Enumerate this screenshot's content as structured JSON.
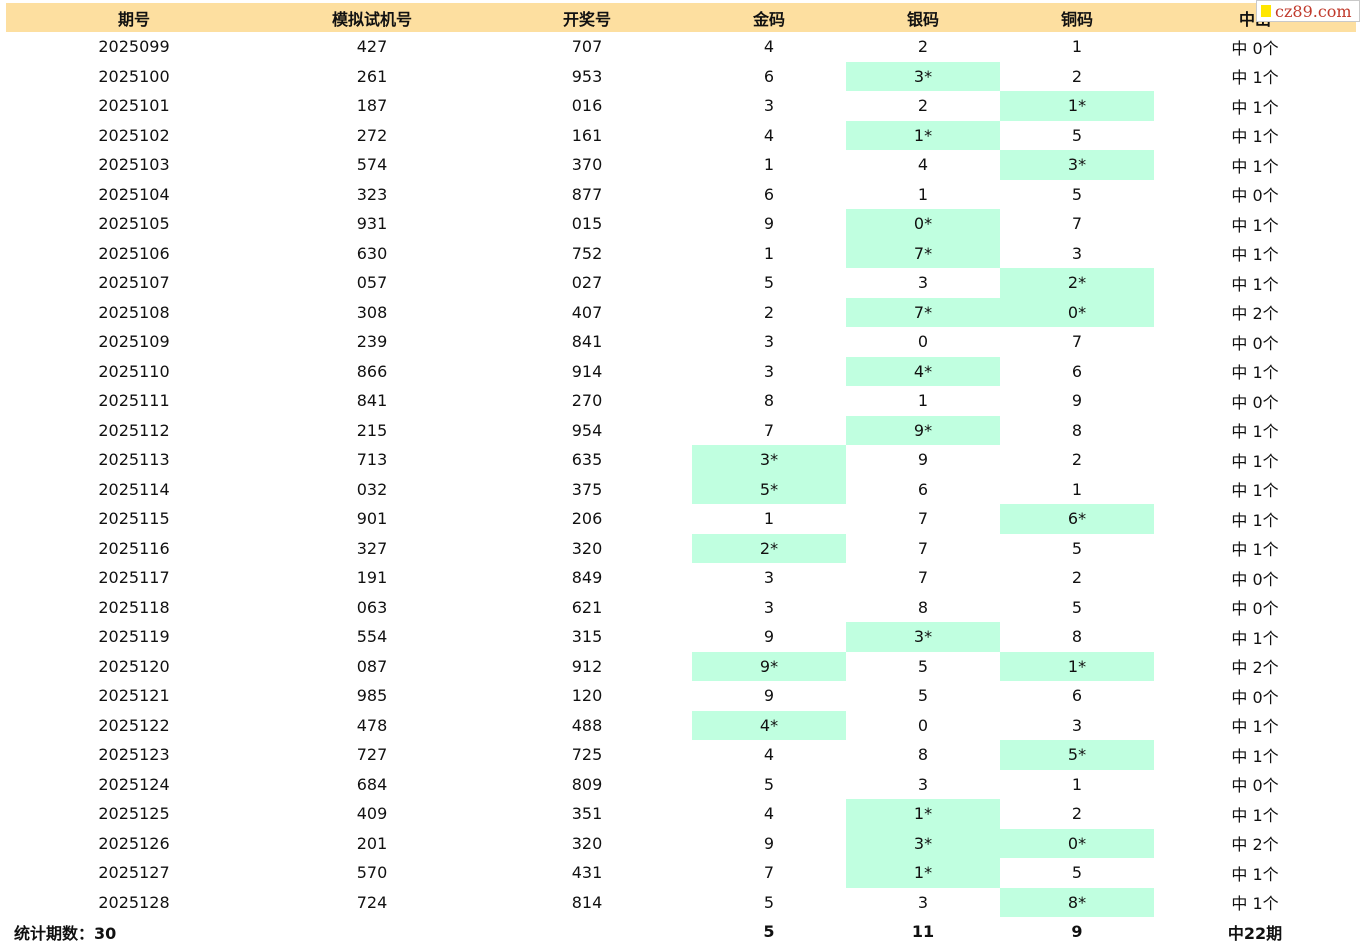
{
  "headers": [
    "期号",
    "模拟试机号",
    "开奖号",
    "金码",
    "银码",
    "铜码",
    "中出"
  ],
  "rows": [
    {
      "period": "2025099",
      "sim": "427",
      "draw": "707",
      "gold": "4",
      "silver": "2",
      "bronze": "1",
      "hits": "中 0个"
    },
    {
      "period": "2025100",
      "sim": "261",
      "draw": "953",
      "gold": "6",
      "silver": "3*",
      "bronze": "2",
      "hits": "中 1个"
    },
    {
      "period": "2025101",
      "sim": "187",
      "draw": "016",
      "gold": "3",
      "silver": "2",
      "bronze": "1*",
      "hits": "中 1个"
    },
    {
      "period": "2025102",
      "sim": "272",
      "draw": "161",
      "gold": "4",
      "silver": "1*",
      "bronze": "5",
      "hits": "中 1个"
    },
    {
      "period": "2025103",
      "sim": "574",
      "draw": "370",
      "gold": "1",
      "silver": "4",
      "bronze": "3*",
      "hits": "中 1个"
    },
    {
      "period": "2025104",
      "sim": "323",
      "draw": "877",
      "gold": "6",
      "silver": "1",
      "bronze": "5",
      "hits": "中 0个"
    },
    {
      "period": "2025105",
      "sim": "931",
      "draw": "015",
      "gold": "9",
      "silver": "0*",
      "bronze": "7",
      "hits": "中 1个"
    },
    {
      "period": "2025106",
      "sim": "630",
      "draw": "752",
      "gold": "1",
      "silver": "7*",
      "bronze": "3",
      "hits": "中 1个"
    },
    {
      "period": "2025107",
      "sim": "057",
      "draw": "027",
      "gold": "5",
      "silver": "3",
      "bronze": "2*",
      "hits": "中 1个"
    },
    {
      "period": "2025108",
      "sim": "308",
      "draw": "407",
      "gold": "2",
      "silver": "7*",
      "bronze": "0*",
      "hits": "中 2个"
    },
    {
      "period": "2025109",
      "sim": "239",
      "draw": "841",
      "gold": "3",
      "silver": "0",
      "bronze": "7",
      "hits": "中 0个"
    },
    {
      "period": "2025110",
      "sim": "866",
      "draw": "914",
      "gold": "3",
      "silver": "4*",
      "bronze": "6",
      "hits": "中 1个"
    },
    {
      "period": "2025111",
      "sim": "841",
      "draw": "270",
      "gold": "8",
      "silver": "1",
      "bronze": "9",
      "hits": "中 0个"
    },
    {
      "period": "2025112",
      "sim": "215",
      "draw": "954",
      "gold": "7",
      "silver": "9*",
      "bronze": "8",
      "hits": "中 1个"
    },
    {
      "period": "2025113",
      "sim": "713",
      "draw": "635",
      "gold": "3*",
      "silver": "9",
      "bronze": "2",
      "hits": "中 1个"
    },
    {
      "period": "2025114",
      "sim": "032",
      "draw": "375",
      "gold": "5*",
      "silver": "6",
      "bronze": "1",
      "hits": "中 1个"
    },
    {
      "period": "2025115",
      "sim": "901",
      "draw": "206",
      "gold": "1",
      "silver": "7",
      "bronze": "6*",
      "hits": "中 1个"
    },
    {
      "period": "2025116",
      "sim": "327",
      "draw": "320",
      "gold": "2*",
      "silver": "7",
      "bronze": "5",
      "hits": "中 1个"
    },
    {
      "period": "2025117",
      "sim": "191",
      "draw": "849",
      "gold": "3",
      "silver": "7",
      "bronze": "2",
      "hits": "中 0个"
    },
    {
      "period": "2025118",
      "sim": "063",
      "draw": "621",
      "gold": "3",
      "silver": "8",
      "bronze": "5",
      "hits": "中 0个"
    },
    {
      "period": "2025119",
      "sim": "554",
      "draw": "315",
      "gold": "9",
      "silver": "3*",
      "bronze": "8",
      "hits": "中 1个"
    },
    {
      "period": "2025120",
      "sim": "087",
      "draw": "912",
      "gold": "9*",
      "silver": "5",
      "bronze": "1*",
      "hits": "中 2个"
    },
    {
      "period": "2025121",
      "sim": "985",
      "draw": "120",
      "gold": "9",
      "silver": "5",
      "bronze": "6",
      "hits": "中 0个"
    },
    {
      "period": "2025122",
      "sim": "478",
      "draw": "488",
      "gold": "4*",
      "silver": "0",
      "bronze": "3",
      "hits": "中 1个"
    },
    {
      "period": "2025123",
      "sim": "727",
      "draw": "725",
      "gold": "4",
      "silver": "8",
      "bronze": "5*",
      "hits": "中 1个"
    },
    {
      "period": "2025124",
      "sim": "684",
      "draw": "809",
      "gold": "5",
      "silver": "3",
      "bronze": "1",
      "hits": "中 0个"
    },
    {
      "period": "2025125",
      "sim": "409",
      "draw": "351",
      "gold": "4",
      "silver": "1*",
      "bronze": "2",
      "hits": "中 1个"
    },
    {
      "period": "2025126",
      "sim": "201",
      "draw": "320",
      "gold": "9",
      "silver": "3*",
      "bronze": "0*",
      "hits": "中 2个"
    },
    {
      "period": "2025127",
      "sim": "570",
      "draw": "431",
      "gold": "7",
      "silver": "1*",
      "bronze": "5",
      "hits": "中 1个"
    },
    {
      "period": "2025128",
      "sim": "724",
      "draw": "814",
      "gold": "5",
      "silver": "3",
      "bronze": "8*",
      "hits": "中 1个"
    }
  ],
  "footer": {
    "label": "统计期数：30",
    "gold": "5",
    "silver": "11",
    "bronze": "9",
    "hits": "中22期"
  },
  "colors": {
    "header_bg": "#fddfa0",
    "hit_bg": "#c0ffe0"
  },
  "watermark": {
    "text": "cz89.com"
  }
}
